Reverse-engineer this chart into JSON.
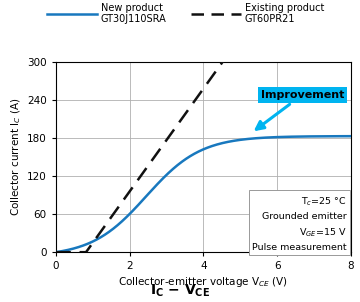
{
  "title_below": "$\\mathbf{I_C - V_{CE}}$",
  "xlabel": "Collector-emitter voltage V$_{CE}$ (V)",
  "ylabel": "Collector current I$_C$ (A)",
  "xlim": [
    0,
    8
  ],
  "ylim": [
    0,
    300
  ],
  "xticks": [
    0,
    2,
    4,
    6,
    8
  ],
  "yticks": [
    0,
    60,
    120,
    180,
    240,
    300
  ],
  "blue_color": "#1878be",
  "dashed_color": "#111111",
  "cyan_color": "#00b4f0",
  "grid_color": "#b0b0b0",
  "background": "#ffffff",
  "legend_new_label1": "New product",
  "legend_new_label2": "GT30J110SRA",
  "legend_existing_label1": "Existing product",
  "legend_existing_label2": "GT60PR21",
  "annotation_text": "Improvement",
  "conditions": [
    "T$_c$=25 °C",
    "Grounded emitter",
    "V$_{GE}$=15 V",
    "Pulse measurement"
  ]
}
